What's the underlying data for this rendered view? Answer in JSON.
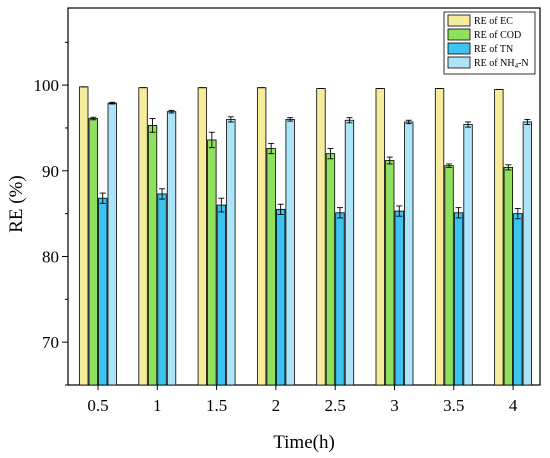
{
  "chart_data": {
    "type": "bar",
    "xlabel": "Time(h)",
    "ylabel": "RE (%)",
    "ylim": [
      65,
      109
    ],
    "yticks": [
      70,
      80,
      90,
      100
    ],
    "categories": [
      "0.5",
      "1",
      "1.5",
      "2",
      "2.5",
      "3",
      "3.5",
      "4"
    ],
    "series": [
      {
        "name": "RE of EC",
        "color": "#f5ed9b",
        "values": [
          99.8,
          99.7,
          99.7,
          99.7,
          99.6,
          99.6,
          99.6,
          99.5
        ],
        "errors": [
          0,
          0,
          0,
          0,
          0,
          0,
          0,
          0
        ]
      },
      {
        "name": "RE of COD",
        "color": "#8fe05f",
        "values": [
          96.1,
          95.3,
          93.6,
          92.6,
          92.0,
          91.2,
          90.6,
          90.4
        ],
        "errors": [
          0.15,
          0.8,
          0.9,
          0.6,
          0.6,
          0.4,
          0.2,
          0.3
        ]
      },
      {
        "name": "RE of TN",
        "color": "#3cc3f0",
        "values": [
          86.8,
          87.3,
          86.0,
          85.5,
          85.1,
          85.3,
          85.1,
          85.0
        ],
        "errors": [
          0.6,
          0.6,
          0.8,
          0.6,
          0.6,
          0.6,
          0.6,
          0.6
        ]
      },
      {
        "name_main": "RE of NH",
        "name_sub": "4",
        "name_suffix": "-N",
        "color": "#aee4f8",
        "values": [
          97.9,
          96.9,
          96.0,
          96.0,
          95.9,
          95.7,
          95.4,
          95.7
        ],
        "errors": [
          0.1,
          0.15,
          0.3,
          0.2,
          0.3,
          0.2,
          0.3,
          0.3
        ]
      }
    ],
    "legend_position": "top-right",
    "grid": false,
    "error_bars": true
  }
}
